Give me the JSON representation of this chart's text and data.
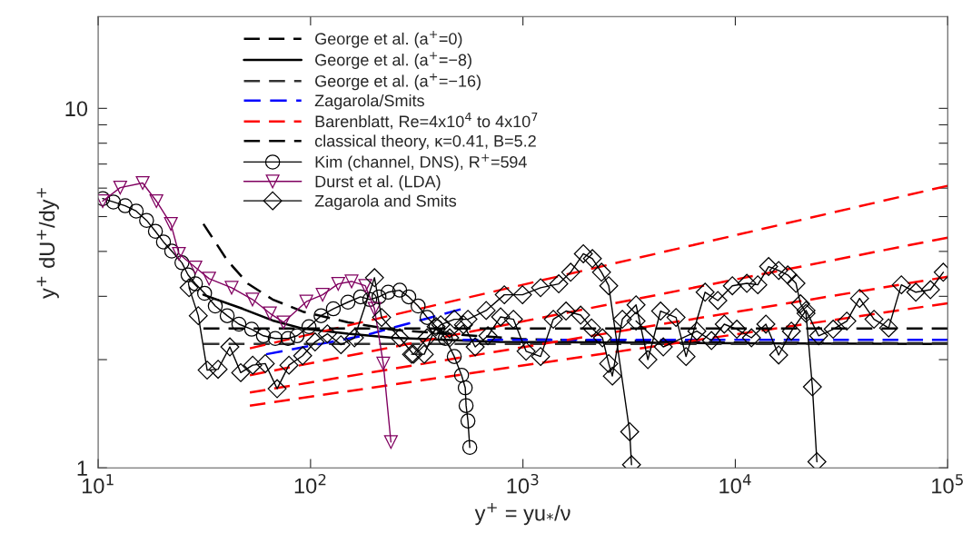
{
  "chart_data": {
    "type": "line",
    "xlabel": "y$^{+}$ = yu$_{*}$/ν",
    "ylabel": "y$^{+}$ dU$^{+}$/dy$^{+}$",
    "log": "xy",
    "grid": false,
    "legend": "top left",
    "xlim": [
      10,
      100000
    ],
    "ylim": [
      1,
      18
    ],
    "xticks": [
      {
        "value": 10,
        "label": "10$^{1}$"
      },
      {
        "value": 100,
        "label": "10$^{2}$"
      },
      {
        "value": 1000,
        "label": "10$^{3}$"
      },
      {
        "value": 10000,
        "label": "10$^{4}$"
      },
      {
        "value": 100000,
        "label": "10$^{5}$"
      }
    ],
    "yticks": [
      1,
      {
        "value": 2,
        "label": null
      },
      {
        "value": 3,
        "label": null
      },
      {
        "value": 4,
        "label": null
      },
      {
        "value": 5,
        "label": null
      },
      {
        "value": 6,
        "label": null
      },
      {
        "value": 7,
        "label": null
      },
      {
        "value": 8,
        "label": null
      },
      {
        "value": 9,
        "label": null
      },
      10
    ],
    "series": [
      {
        "name": "George et al. (a$^{+}$=0)",
        "color": "#000000",
        "line_style": "dashed",
        "marker": "none",
        "x": [
          31.3,
          40.5,
          50.8,
          66.3,
          91.9,
          150,
          245,
          1000,
          10000,
          100000
        ],
        "values": [
          4.77,
          3.78,
          3.25,
          2.94,
          2.72,
          2.54,
          2.42,
          2.28,
          2.23,
          2.22
        ]
      },
      {
        "name": "George et al. (a$^{+}$=−8)",
        "color": "#000000",
        "line_style": "solid",
        "marker": "none",
        "x": [
          31.3,
          47.9,
          66.3,
          91.9,
          150,
          245,
          778,
          10000,
          100000
        ],
        "values": [
          3.03,
          2.77,
          2.57,
          2.44,
          2.36,
          2.3,
          2.24,
          2.22,
          2.21
        ]
      },
      {
        "name": "George et al. (a$^{+}$=−16)",
        "color": "#333333",
        "line_style": "dashed",
        "marker": "none",
        "x": [
          31.3,
          100,
          1000,
          100000
        ],
        "values": [
          2.21,
          2.21,
          2.21,
          2.21
        ]
      },
      {
        "name": "Zagarola/Smits",
        "color": "#0000ff",
        "line_style": "dashed",
        "marker": "none",
        "x": [
          61.8,
          177,
          509
        ],
        "values": [
          2.07,
          2.33,
          2.76
        ]
      },
      {
        "color": "#0000ff",
        "line_style": "dashed",
        "marker": "none",
        "x": [
          520,
          100000
        ],
        "values": [
          2.27,
          2.27
        ]
      },
      {
        "name": "Barenblatt, Re=4x10$^{4}$ to 4x10$^{7}$",
        "color": "#ff0000",
        "line_style": "dashed",
        "marker": "none",
        "x": [
          51.8,
          100000
        ],
        "values": [
          2.15,
          6.09
        ]
      },
      {
        "color": "#ff0000",
        "line_style": "dashed",
        "marker": "none",
        "x": [
          51.8,
          100000
        ],
        "values": [
          1.81,
          4.37
        ]
      },
      {
        "color": "#ff0000",
        "line_style": "dashed",
        "marker": "none",
        "x": [
          51.8,
          100000
        ],
        "values": [
          1.62,
          3.4
        ]
      },
      {
        "color": "#ff0000",
        "line_style": "dashed",
        "marker": "none",
        "x": [
          51.8,
          100000
        ],
        "values": [
          1.49,
          2.87
        ]
      },
      {
        "name": "classical theory, κ=0.41, B=5.2",
        "color": "#000000",
        "line_style": "dashed",
        "marker": "none",
        "x": [
          31.3,
          100000
        ],
        "values": [
          2.44,
          2.44
        ]
      },
      {
        "name": "Kim (channel, DNS), R$^{+}$=594",
        "color": "#000000",
        "line_style": "solid",
        "marker": "circle",
        "x": [
          10.5,
          11.8,
          13.4,
          15.1,
          16.9,
          18.6,
          20.3,
          22.2,
          24.8,
          26.5,
          28.7,
          31.7,
          35.6,
          40.5,
          46.0,
          52.8,
          60.0,
          68.2,
          78.3,
          86.4,
          98.3,
          112,
          128,
          150,
          172,
          190,
          210,
          232,
          263,
          290,
          321,
          354,
          390,
          431,
          475,
          514,
          535,
          540,
          551,
          562
        ],
        "values": [
          5.61,
          5.49,
          5.36,
          5.18,
          4.88,
          4.55,
          4.25,
          4.01,
          3.72,
          3.44,
          3.25,
          3.06,
          2.82,
          2.65,
          2.51,
          2.43,
          2.33,
          2.29,
          2.29,
          2.33,
          2.47,
          2.65,
          2.77,
          2.89,
          2.99,
          2.94,
          2.99,
          3.08,
          3.12,
          2.99,
          2.82,
          2.62,
          2.47,
          2.29,
          2.04,
          1.81,
          1.67,
          1.49,
          1.35,
          1.14
        ]
      },
      {
        "name": "Durst et al. (LDA)",
        "color": "#800060",
        "line_style": "solid",
        "marker": "triangle",
        "x": [
          10.5,
          12.7,
          16.2,
          18.8,
          22.0,
          24.0,
          28.7,
          33.3,
          42.5,
          53.3,
          64.4,
          74.6,
          95.5,
          114,
          135,
          156,
          181,
          200,
          220,
          239
        ],
        "values": [
          5.52,
          6.02,
          6.2,
          5.52,
          4.77,
          3.94,
          3.61,
          3.36,
          3.17,
          2.94,
          2.69,
          2.54,
          2.9,
          3.03,
          3.25,
          3.3,
          3.21,
          2.77,
          1.95,
          1.18
        ]
      },
      {
        "name": "Zagarola and Smits",
        "color": "#000000",
        "line_style": "solid",
        "marker": "diamond",
        "x": [
          26.8,
          29.6,
          32.6,
          36.7,
          41.7,
          46.9,
          53.4,
          61.2,
          69.6,
          79.1,
          91.8,
          105,
          120,
          139,
          161,
          200,
          216,
          263,
          305,
          354,
          410,
          475,
          551,
          671,
          817,
          995,
          1211,
          1475,
          1678,
          1925,
          2123,
          2344,
          2535,
          3182,
          3245
        ],
        "values": [
          3.17,
          2.65,
          1.87,
          1.88,
          2.17,
          1.84,
          1.93,
          1.95,
          1.66,
          1.93,
          2.05,
          2.24,
          2.36,
          2.2,
          2.3,
          3.38,
          2.62,
          2.3,
          2.07,
          2.3,
          2.5,
          2.59,
          2.59,
          2.74,
          3.03,
          3.03,
          3.17,
          3.25,
          3.5,
          3.94,
          3.82,
          3.5,
          3.21,
          1.26,
          1.02
        ]
      },
      {
        "color": "#000000",
        "line_style": "solid",
        "marker": "diamond",
        "x": [
          299,
          343,
          390,
          452,
          525,
          596,
          684,
          785,
          902,
          1035,
          1211,
          1390,
          1596,
          1869,
          2104,
          2368,
          2535,
          2636,
          2938,
          3409,
          3876,
          4449,
          5259,
          5861,
          7207,
          8275,
          9685,
          11330,
          12760,
          14350,
          16000,
          17650,
          19300,
          20280,
          21520,
          23060,
          24220
        ],
        "values": [
          2.07,
          2.07,
          2.47,
          2.3,
          2.5,
          2.17,
          2.33,
          2.63,
          2.59,
          2.11,
          2.04,
          2.59,
          2.73,
          2.66,
          2.45,
          2.3,
          1.95,
          1.8,
          2.59,
          2.84,
          2.0,
          2.73,
          2.62,
          2.04,
          3.08,
          2.92,
          3.21,
          3.26,
          3.23,
          3.63,
          3.54,
          3.44,
          3.26,
          2.86,
          2.69,
          1.68,
          1.04
        ]
      },
      {
        "color": "#000000",
        "line_style": "solid",
        "marker": "diamond",
        "x": [
          3409,
          4580,
          6590,
          7720,
          8870,
          10170,
          11910,
          13930,
          16000,
          18360,
          21520,
          24680,
          28890,
          33500,
          38460,
          44980,
          52700,
          60510,
          70800,
          82940,
          95300
        ],
        "values": [
          2.56,
          2.17,
          2.4,
          2.26,
          2.51,
          2.43,
          2.3,
          2.51,
          2.06,
          2.4,
          2.74,
          2.33,
          2.43,
          2.56,
          2.96,
          2.59,
          2.45,
          3.23,
          3.08,
          3.13,
          3.5
        ]
      }
    ]
  }
}
